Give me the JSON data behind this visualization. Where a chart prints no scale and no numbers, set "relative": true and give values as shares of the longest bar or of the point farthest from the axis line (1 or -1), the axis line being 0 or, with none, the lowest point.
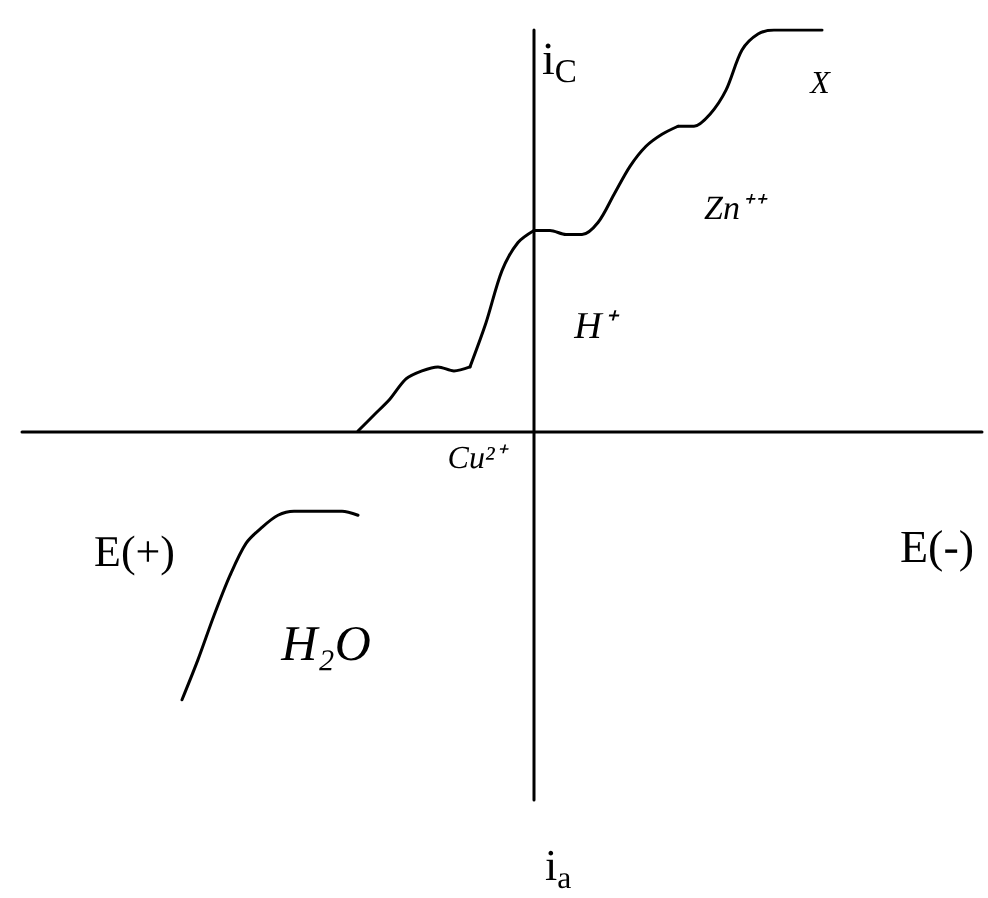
{
  "chart_data": {
    "type": "line",
    "relative": true,
    "xlabel": "E(-)",
    "ylabel": "i$_{C}$",
    "annotations": [
      "E(+)",
      "i$_{a}$"
    ],
    "categories": [
      null,
      null,
      null,
      null,
      null,
      null,
      null,
      null,
      null,
      null,
      null,
      null,
      null,
      null,
      null,
      null,
      null,
      null,
      null,
      null,
      null,
      null,
      null,
      null,
      null,
      null,
      null,
      null,
      null,
      null,
      null,
      null,
      null,
      null,
      null,
      null,
      null,
      null,
      null,
      null,
      null,
      null,
      null,
      null,
      null,
      null,
      null,
      null,
      null,
      null,
      null,
      null,
      null,
      null,
      null,
      null,
      null,
      null,
      null,
      null,
      null
    ],
    "series": [
      {
        "name": "Cu²⁺",
        "color": "#000000",
        "values": [
          null,
          null,
          null,
          null,
          null,
          null,
          null,
          null,
          null,
          null,
          null,
          null,
          null,
          null,
          null,
          null,
          null,
          null,
          null,
          null,
          null,
          0,
          0.04,
          0.08,
          0.13,
          0.15,
          0.16,
          0.15,
          0.16,
          null,
          null,
          null,
          null,
          null,
          null,
          null,
          null,
          null,
          null,
          null,
          null,
          null,
          null,
          null,
          null,
          null,
          null,
          null,
          null,
          null,
          null,
          null,
          null,
          null,
          null,
          null,
          null,
          null,
          null,
          null,
          null
        ]
      },
      {
        "name": "H⁺",
        "color": "#000000",
        "values": [
          null,
          null,
          null,
          null,
          null,
          null,
          null,
          null,
          null,
          null,
          null,
          null,
          null,
          null,
          null,
          null,
          null,
          null,
          null,
          null,
          null,
          null,
          null,
          null,
          null,
          null,
          null,
          null,
          0.16,
          0.27,
          0.4,
          0.47,
          0.5,
          null,
          null,
          null,
          null,
          null,
          null,
          null,
          null,
          null,
          null,
          null,
          null,
          null,
          null,
          null,
          null,
          null,
          null,
          null,
          null,
          null,
          null,
          null,
          null,
          null,
          null,
          null,
          null
        ]
      },
      {
        "name": "Zn⁺⁺",
        "color": "#000000",
        "values": [
          null,
          null,
          null,
          null,
          null,
          null,
          null,
          null,
          null,
          null,
          null,
          null,
          null,
          null,
          null,
          null,
          null,
          null,
          null,
          null,
          null,
          null,
          null,
          null,
          null,
          null,
          null,
          null,
          null,
          null,
          null,
          null,
          0.5,
          0.5,
          0.49,
          0.49,
          0.52,
          0.59,
          0.66,
          0.71,
          0.74,
          0.76,
          null,
          null,
          null,
          null,
          null,
          null,
          null,
          null,
          null,
          null,
          null,
          null,
          null,
          null,
          null,
          null,
          null,
          null,
          null
        ]
      },
      {
        "name": "X",
        "color": "#000000",
        "values": [
          null,
          null,
          null,
          null,
          null,
          null,
          null,
          null,
          null,
          null,
          null,
          null,
          null,
          null,
          null,
          null,
          null,
          null,
          null,
          null,
          null,
          null,
          null,
          null,
          null,
          null,
          null,
          null,
          null,
          null,
          null,
          null,
          null,
          null,
          null,
          null,
          null,
          null,
          null,
          null,
          null,
          0.76,
          0.76,
          0.79,
          0.85,
          0.95,
          0.99,
          1,
          1,
          1,
          1,
          null,
          null,
          null,
          null,
          null,
          null,
          null,
          null,
          null,
          null
        ]
      },
      {
        "name": "H₂O",
        "color": "#000000",
        "values": [
          null,
          null,
          null,
          null,
          null,
          null,
          null,
          null,
          null,
          null,
          -0.67,
          -0.57,
          -0.46,
          -0.36,
          -0.28,
          -0.24,
          -0.21,
          -0.2,
          -0.2,
          -0.2,
          -0.2,
          -0.21,
          null,
          null,
          null,
          null,
          null,
          null,
          null,
          null,
          null,
          null,
          null,
          null,
          null,
          null,
          null,
          null,
          null,
          null,
          null,
          null,
          null,
          null,
          null,
          null,
          null,
          null,
          null,
          null,
          null,
          null,
          null,
          null,
          null,
          null,
          null,
          null,
          null,
          null,
          null
        ]
      }
    ]
  }
}
